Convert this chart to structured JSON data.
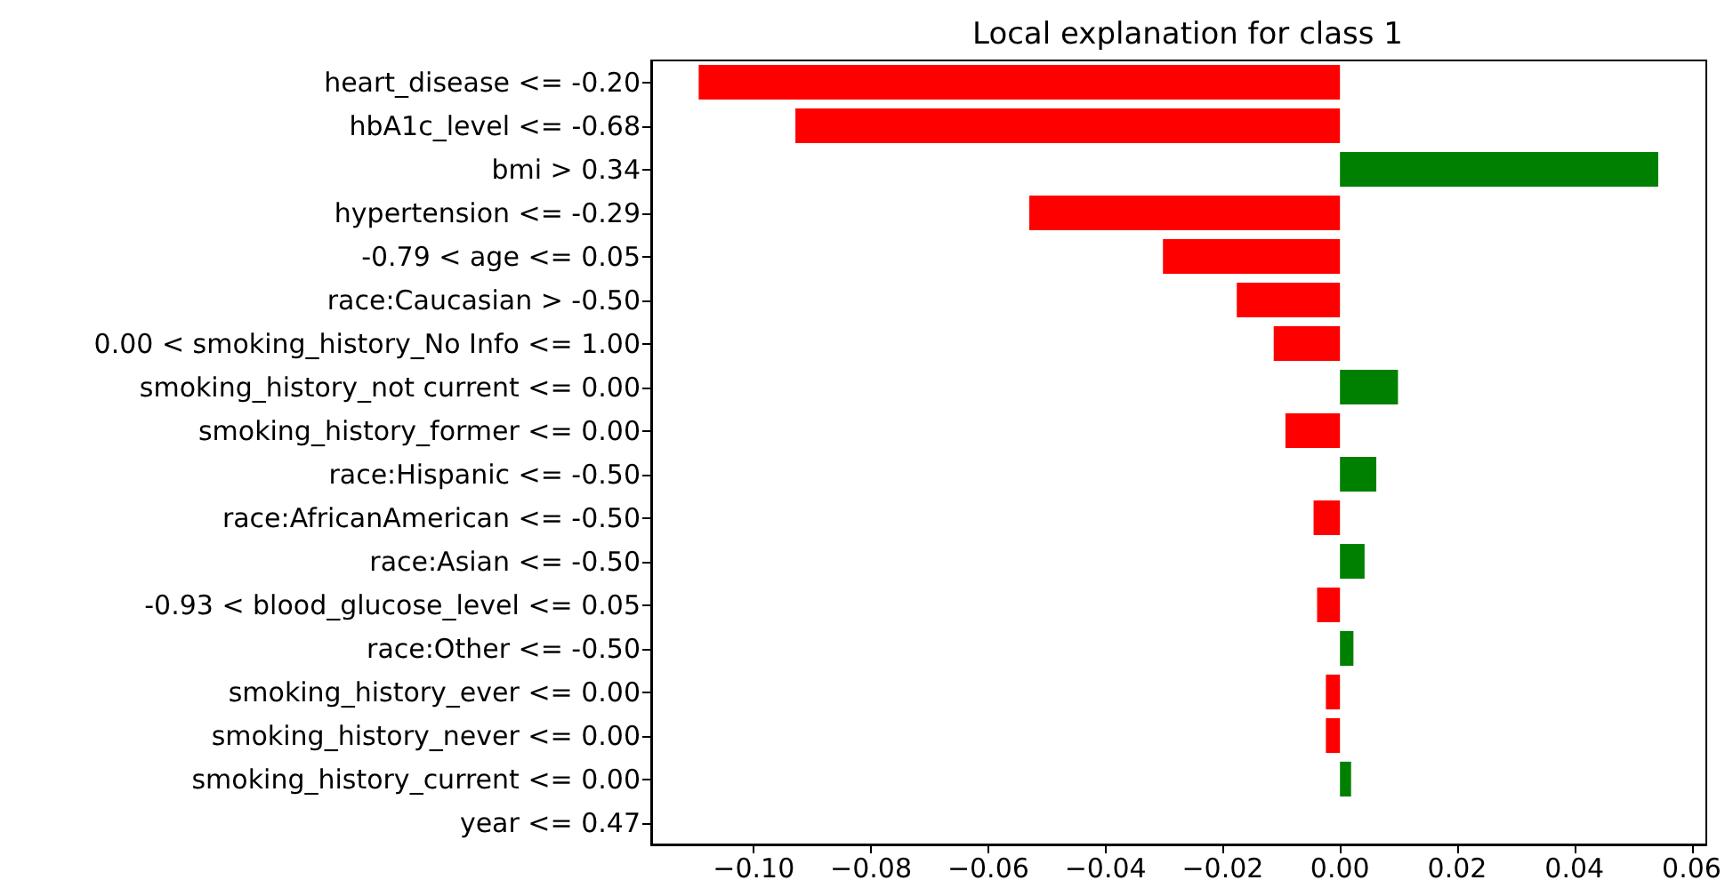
{
  "chart_data": {
    "type": "bar",
    "orientation": "horizontal",
    "title": "Local explanation for class 1",
    "categories": [
      "heart_disease <= -0.20",
      "hbA1c_level <= -0.68",
      "bmi > 0.34",
      "hypertension <= -0.29",
      "-0.79 < age <= 0.05",
      "race:Caucasian > -0.50",
      "0.00 < smoking_history_No Info <= 1.00",
      "smoking_history_not current <= 0.00",
      "smoking_history_former <= 0.00",
      "race:Hispanic <= -0.50",
      "race:AfricanAmerican <= -0.50",
      "race:Asian <= -0.50",
      "-0.93 < blood_glucose_level <= 0.05",
      "race:Other <= -0.50",
      "smoking_history_ever <= 0.00",
      "smoking_history_never <= 0.00",
      "smoking_history_current <= 0.00",
      "year <= 0.47"
    ],
    "values": [
      -0.1094,
      -0.0929,
      0.0543,
      -0.053,
      -0.0302,
      -0.0176,
      -0.0113,
      0.0099,
      -0.0093,
      0.0062,
      -0.0045,
      0.0042,
      -0.0039,
      0.0023,
      -0.0024,
      -0.0024,
      0.0019,
      0
    ],
    "colors": [
      "#ff0000",
      "#ff0000",
      "#008000",
      "#ff0000",
      "#ff0000",
      "#ff0000",
      "#ff0000",
      "#008000",
      "#ff0000",
      "#008000",
      "#ff0000",
      "#008000",
      "#ff0000",
      "#008000",
      "#ff0000",
      "#ff0000",
      "#008000",
      "#008000"
    ],
    "xlim": [
      -0.1175,
      0.0625
    ],
    "xticks": [
      {
        "value": -0.1,
        "label": "−0.10"
      },
      {
        "value": -0.08,
        "label": "−0.08"
      },
      {
        "value": -0.06,
        "label": "−0.06"
      },
      {
        "value": -0.04,
        "label": "−0.04"
      },
      {
        "value": -0.02,
        "label": "−0.02"
      },
      {
        "value": 0,
        "label": "0.00"
      },
      {
        "value": 0.02,
        "label": "0.02"
      },
      {
        "value": 0.04,
        "label": "0.04"
      },
      {
        "value": 0.06,
        "label": "0.06"
      }
    ],
    "grid": false
  }
}
